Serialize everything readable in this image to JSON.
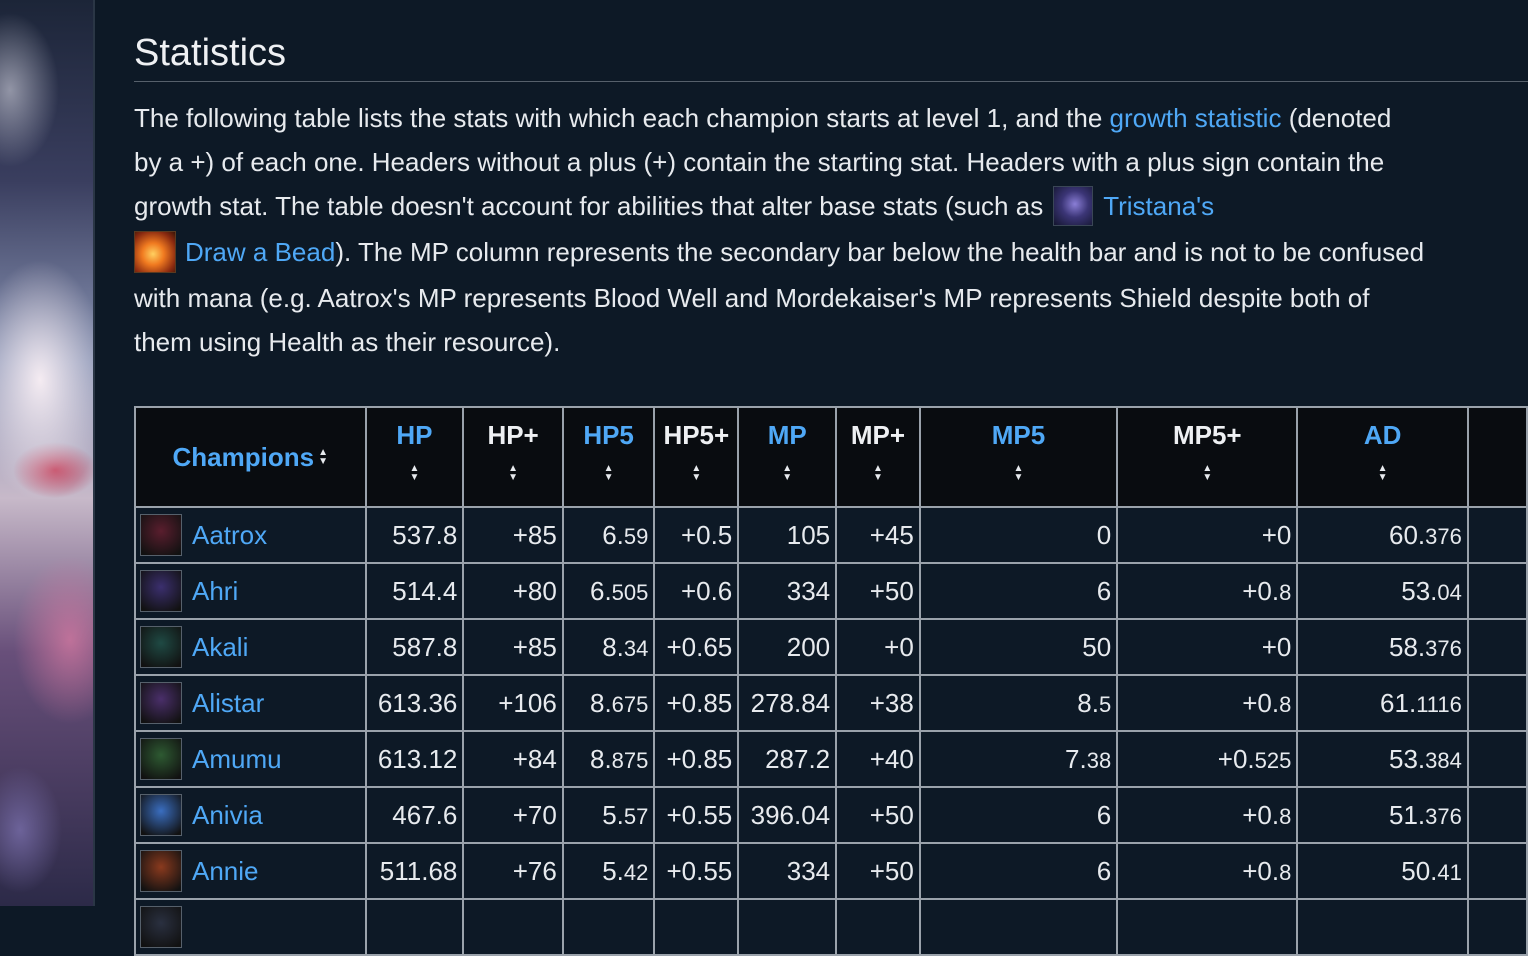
{
  "section": {
    "heading": "Statistics",
    "intro": {
      "l1_a": "The following table lists the stats with which each champion starts at level 1, and the ",
      "l1_link": "growth statistic",
      "l1_b": " (denoted",
      "l2": "by a +) of each one. Headers without a plus (+) contain the starting stat. Headers with a plus sign contain the",
      "l3_a": "growth stat. The table doesn't account for abilities that alter base stats (such as",
      "l3_link": "Tristana's",
      "l4_link": "Draw a Bead",
      "l4_b": "). The MP column represents the secondary bar below the health bar and is not to be confused",
      "l5": "with mana (e.g. Aatrox's MP represents Blood Well and Mordekaiser's MP represents Shield despite both of",
      "l6": "them using Health as their resource)."
    }
  },
  "table": {
    "headers": {
      "champions": "Champions",
      "hp": "HP",
      "hp_plus": "HP+",
      "hp5": "HP5",
      "hp5_plus": "HP5+",
      "mp": "MP",
      "mp_plus": "MP+",
      "mp5": "MP5",
      "mp5_plus": "MP5+",
      "ad": "AD"
    },
    "rows": [
      {
        "name": "Aatrox",
        "hp": "537.8",
        "hp_plus": "+85",
        "hp5_main": "6.",
        "hp5_dec": "59",
        "hp5_plus": "+0.5",
        "mp": "105",
        "mp_plus": "+45",
        "mp5_main": "0",
        "mp5_dec": "",
        "mp5_plus_main": "+0",
        "mp5_plus_dec": "",
        "ad_main": "60.",
        "ad_dec": "376",
        "portrait": "#5a1e2e"
      },
      {
        "name": "Ahri",
        "hp": "514.4",
        "hp_plus": "+80",
        "hp5_main": "6.",
        "hp5_dec": "505",
        "hp5_plus": "+0.6",
        "mp": "334",
        "mp_plus": "+50",
        "mp5_main": "6",
        "mp5_dec": "",
        "mp5_plus_main": "+0.",
        "mp5_plus_dec": "8",
        "ad_main": "53.",
        "ad_dec": "04",
        "portrait": "#3b2f6e"
      },
      {
        "name": "Akali",
        "hp": "587.8",
        "hp_plus": "+85",
        "hp5_main": "8.",
        "hp5_dec": "34",
        "hp5_plus": "+0.65",
        "mp": "200",
        "mp_plus": "+0",
        "mp5_main": "50",
        "mp5_dec": "",
        "mp5_plus_main": "+0",
        "mp5_plus_dec": "",
        "ad_main": "58.",
        "ad_dec": "376",
        "portrait": "#1f4a44"
      },
      {
        "name": "Alistar",
        "hp": "613.36",
        "hp_plus": "+106",
        "hp5_main": "8.",
        "hp5_dec": "675",
        "hp5_plus": "+0.85",
        "mp": "278.84",
        "mp_plus": "+38",
        "mp5_main": "8.",
        "mp5_dec": "5",
        "mp5_plus_main": "+0.",
        "mp5_plus_dec": "8",
        "ad_main": "61.",
        "ad_dec": "1116",
        "portrait": "#4a2f6a"
      },
      {
        "name": "Amumu",
        "hp": "613.12",
        "hp_plus": "+84",
        "hp5_main": "8.",
        "hp5_dec": "875",
        "hp5_plus": "+0.85",
        "mp": "287.2",
        "mp_plus": "+40",
        "mp5_main": "7.",
        "mp5_dec": "38",
        "mp5_plus_main": "+0.",
        "mp5_plus_dec": "525",
        "ad_main": "53.",
        "ad_dec": "384",
        "portrait": "#2e5a32"
      },
      {
        "name": "Anivia",
        "hp": "467.6",
        "hp_plus": "+70",
        "hp5_main": "5.",
        "hp5_dec": "57",
        "hp5_plus": "+0.55",
        "mp": "396.04",
        "mp_plus": "+50",
        "mp5_main": "6",
        "mp5_dec": "",
        "mp5_plus_main": "+0.",
        "mp5_plus_dec": "8",
        "ad_main": "51.",
        "ad_dec": "376",
        "portrait": "#3a6ec0"
      },
      {
        "name": "Annie",
        "hp": "511.68",
        "hp_plus": "+76",
        "hp5_main": "5.",
        "hp5_dec": "42",
        "hp5_plus": "+0.55",
        "mp": "334",
        "mp_plus": "+50",
        "mp5_main": "6",
        "mp5_dec": "",
        "mp5_plus_main": "+0.",
        "mp5_plus_dec": "8",
        "ad_main": "50.",
        "ad_dec": "41",
        "portrait": "#8a3a1e"
      },
      {
        "name": "",
        "hp": "",
        "hp_plus": "",
        "hp5_main": "",
        "hp5_dec": "",
        "hp5_plus": "",
        "mp": "",
        "mp_plus": "",
        "mp5_main": "",
        "mp5_dec": "",
        "mp5_plus_main": "",
        "mp5_plus_dec": "",
        "ad_main": "",
        "ad_dec": "",
        "portrait": "#2a3040"
      }
    ]
  },
  "icons": {
    "sort": "sort-updown-icon",
    "tristana": "tristana-portrait-icon",
    "draw_a_bead": "draw-a-bead-ability-icon"
  },
  "colors": {
    "background": "#0d1926",
    "link": "#4fa8f6",
    "header_bg": "#090c10",
    "border": "#9aa2ab"
  }
}
